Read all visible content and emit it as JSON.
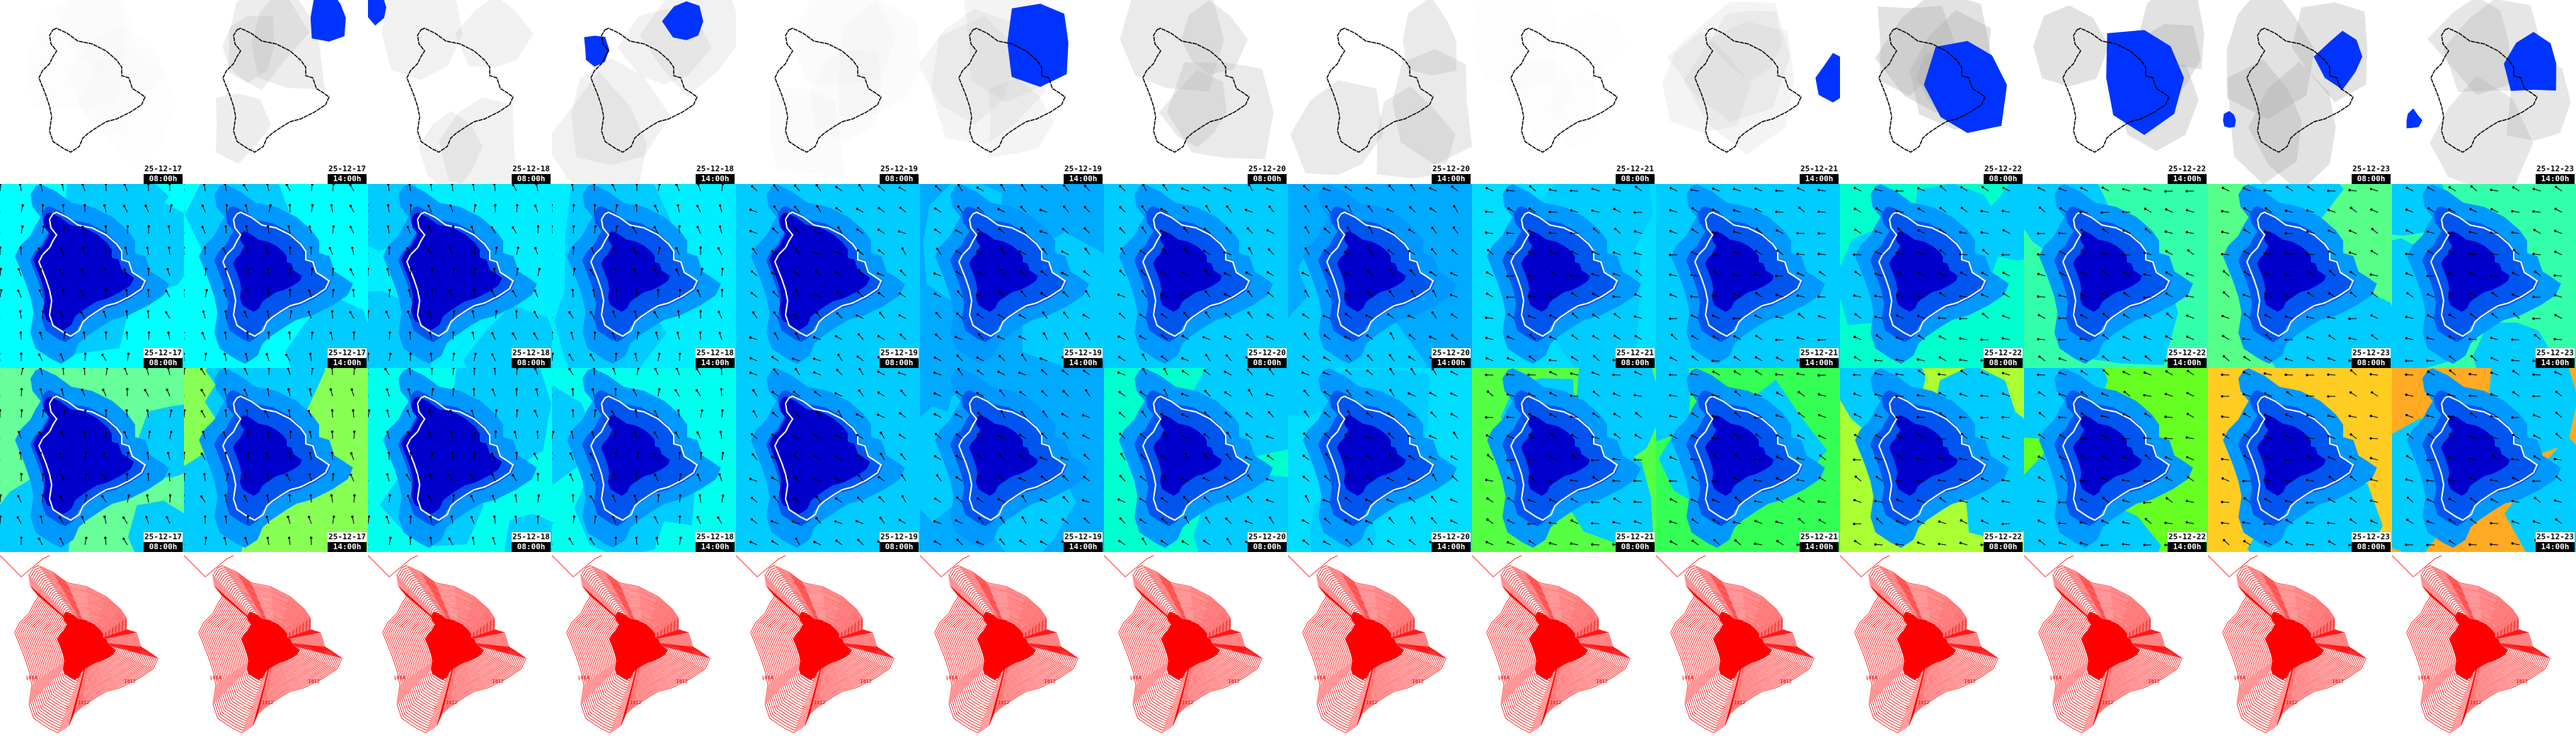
{
  "rows": [
    {
      "name": "precipitation",
      "has_stamp": true
    },
    {
      "name": "wind",
      "has_stamp": true
    },
    {
      "name": "gusts",
      "has_stamp": true
    },
    {
      "name": "pressure",
      "has_stamp": false
    }
  ],
  "frames": [
    {
      "date": "25-12-17",
      "time": "08:00h"
    },
    {
      "date": "25-12-17",
      "time": "14:00h"
    },
    {
      "date": "25-12-18",
      "time": "08:00h"
    },
    {
      "date": "25-12-18",
      "time": "14:00h"
    },
    {
      "date": "25-12-19",
      "time": "08:00h"
    },
    {
      "date": "25-12-19",
      "time": "14:00h"
    },
    {
      "date": "25-12-20",
      "time": "08:00h"
    },
    {
      "date": "25-12-20",
      "time": "14:00h"
    },
    {
      "date": "25-12-21",
      "time": "08:00h"
    },
    {
      "date": "25-12-21",
      "time": "14:00h"
    },
    {
      "date": "25-12-22",
      "time": "08:00h"
    },
    {
      "date": "25-12-22",
      "time": "14:00h"
    },
    {
      "date": "25-12-23",
      "time": "08:00h"
    },
    {
      "date": "25-12-23",
      "time": "14:00h"
    }
  ],
  "colors": {
    "precip_blue": "#0033ff",
    "precip_grey": "#b0b0b0",
    "pressure_red": "#ff0000",
    "wind_palette": [
      "#00ffff",
      "#00ccff",
      "#0099ff",
      "#0055ee",
      "#0000cc"
    ],
    "wind_outer": [
      "#00ffff",
      "#00ffff",
      "#00eeff",
      "#00eeff",
      "#00ccff",
      "#00aaff",
      "#00ccff",
      "#00aaff",
      "#00ddff",
      "#00ccff",
      "#00ffcc",
      "#33ffaa",
      "#55ff88",
      "#33ffaa"
    ],
    "gust_outer": [
      "#66ff99",
      "#88ff55",
      "#00ffee",
      "#00ffee",
      "#00ccff",
      "#00aaff",
      "#00ffcc",
      "#00ddff",
      "#55ff44",
      "#33ff55",
      "#aaff33",
      "#66ff22",
      "#ffcc22",
      "#ffaa22"
    ]
  },
  "contour_labels": [
    "1014",
    "1012",
    "1012"
  ]
}
